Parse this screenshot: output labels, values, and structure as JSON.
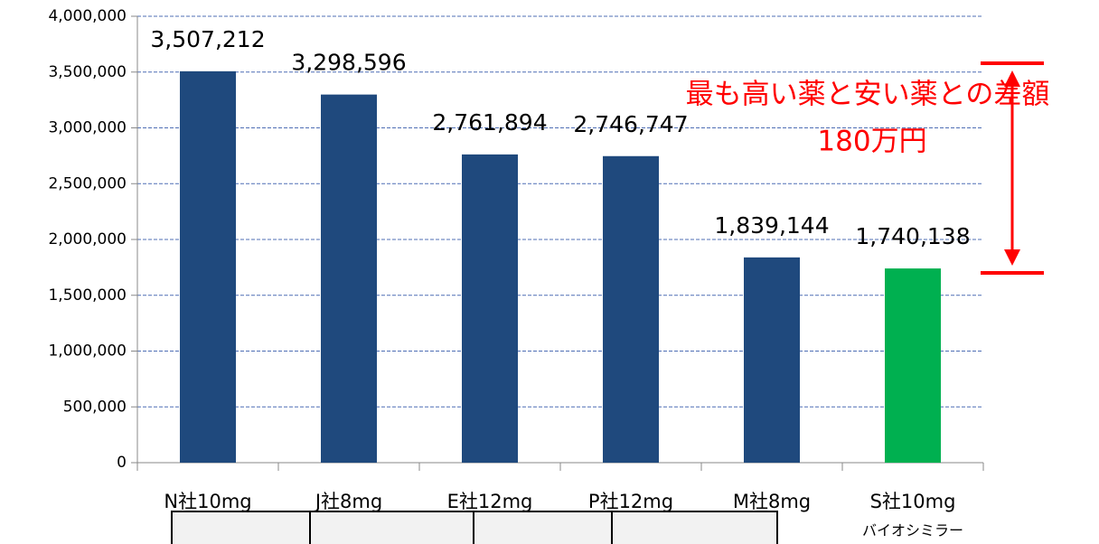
{
  "chart_data": {
    "type": "bar",
    "categories": [
      "N社10mg",
      "J社8mg",
      "E社12mg",
      "P社12mg",
      "M社8mg",
      "S社10mg"
    ],
    "values": [
      3507212,
      3298596,
      2761894,
      2746747,
      1839144,
      1740138
    ],
    "value_labels": [
      "3,507,212",
      "3,298,596",
      "2,761,894",
      "2,746,747",
      "1,839,144",
      "1,740,138"
    ],
    "colors": [
      "#1f497d",
      "#1f497d",
      "#1f497d",
      "#1f497d",
      "#1f497d",
      "#00b050"
    ],
    "ylim": [
      0,
      4000000
    ],
    "yticks": [
      0,
      {
        "value": 500000,
        "label": "500,000"
      },
      {
        "value": 1000000,
        "label": "1,000,000"
      },
      {
        "value": 1500000,
        "label": "1,500,000"
      },
      {
        "value": 2000000,
        "label": "2,000,000"
      },
      {
        "value": 2500000,
        "label": "2,500,000"
      },
      {
        "value": 3000000,
        "label": "3,000,000"
      },
      {
        "value": 3500000,
        "label": "3,500,000"
      },
      {
        "value": 4000000,
        "label": "4,000,000"
      }
    ],
    "grid": true,
    "annotations": [
      "最も高い薬と安い薬との差額",
      "180万円"
    ],
    "footnote": "バイオシミラー"
  }
}
